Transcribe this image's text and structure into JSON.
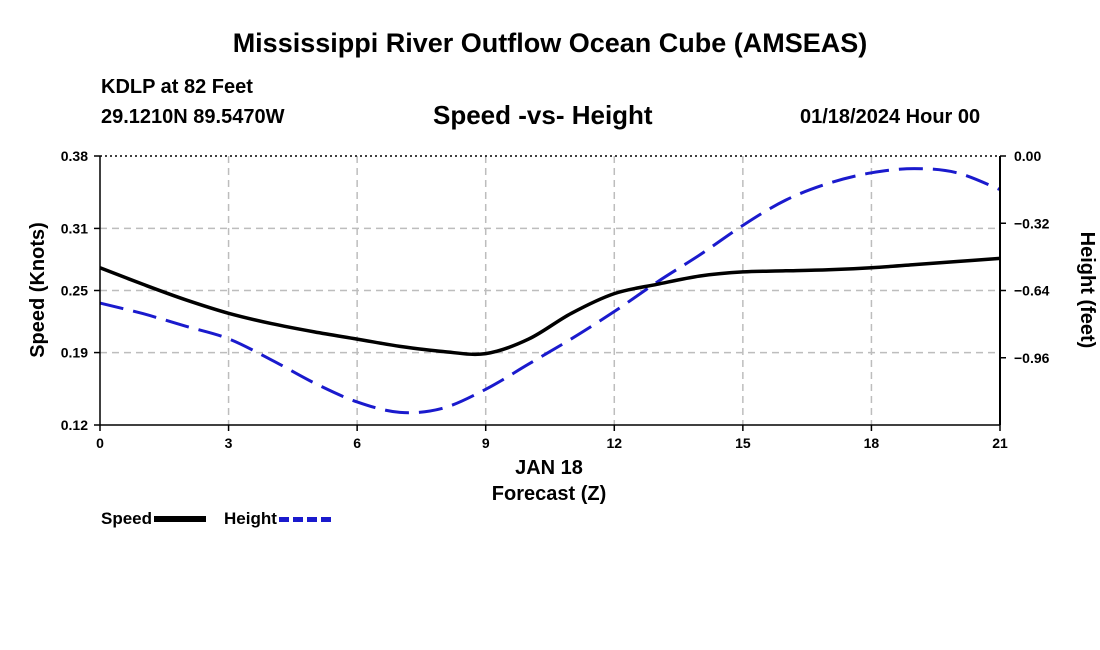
{
  "page_title": "Mississippi River Outflow Ocean Cube (AMSEAS)",
  "station": "KDLP at 82 Feet",
  "coordinates": "29.1210N  89.5470W",
  "datetime": "01/18/2024 Hour 00",
  "colors": {
    "speed": "#000000",
    "height": "#1a1acd",
    "grid": "#bdbdbd"
  },
  "legend": {
    "speed_label": "Speed",
    "height_label": "Height"
  },
  "chart_data": {
    "type": "line",
    "title": "Speed -vs- Height",
    "xlabel": "Forecast (Z)",
    "date_label": "JAN 18",
    "ylabel_left": "Speed (Knots)",
    "ylabel_right": "Height (feet)",
    "xlim": [
      0,
      21
    ],
    "ylim_left": [
      0.12,
      0.38
    ],
    "ylim_right": [
      -1.28,
      0.0
    ],
    "x_ticks": [
      0,
      3,
      6,
      9,
      12,
      15,
      18,
      21
    ],
    "x_tick_labels": [
      "0",
      "3",
      "6",
      "9",
      "12",
      "15",
      "18",
      "21"
    ],
    "left_ticks": [
      0.12,
      0.19,
      0.25,
      0.31,
      0.38
    ],
    "left_tick_labels": [
      "0.12",
      "0.19",
      "0.25",
      "0.31",
      "0.38"
    ],
    "right_ticks": [
      0.0,
      -0.32,
      -0.64,
      -0.96
    ],
    "right_tick_labels": [
      "0.00",
      "−0.32",
      "−0.64",
      "−0.96"
    ],
    "grid": true,
    "series": [
      {
        "name": "Speed",
        "axis": "left",
        "style": "solid",
        "x": [
          0,
          1,
          2,
          3,
          4,
          5,
          6,
          7,
          8,
          9,
          10,
          11,
          12,
          13,
          14,
          15,
          16,
          17,
          18,
          19,
          20,
          21
        ],
        "values": [
          0.272,
          0.256,
          0.241,
          0.228,
          0.218,
          0.21,
          0.203,
          0.196,
          0.191,
          0.189,
          0.203,
          0.228,
          0.247,
          0.256,
          0.264,
          0.268,
          0.269,
          0.27,
          0.272,
          0.275,
          0.278,
          0.281
        ]
      },
      {
        "name": "Height",
        "axis": "right",
        "style": "dashed",
        "x": [
          0,
          1,
          2,
          3,
          4,
          5,
          6,
          7,
          8,
          9,
          10,
          11,
          12,
          13,
          14,
          15,
          16,
          17,
          18,
          19,
          20,
          21
        ],
        "values": [
          -0.7,
          -0.75,
          -0.81,
          -0.87,
          -0.97,
          -1.08,
          -1.17,
          -1.22,
          -1.2,
          -1.11,
          -0.99,
          -0.87,
          -0.74,
          -0.6,
          -0.47,
          -0.33,
          -0.21,
          -0.13,
          -0.08,
          -0.06,
          -0.08,
          -0.16
        ]
      }
    ]
  }
}
